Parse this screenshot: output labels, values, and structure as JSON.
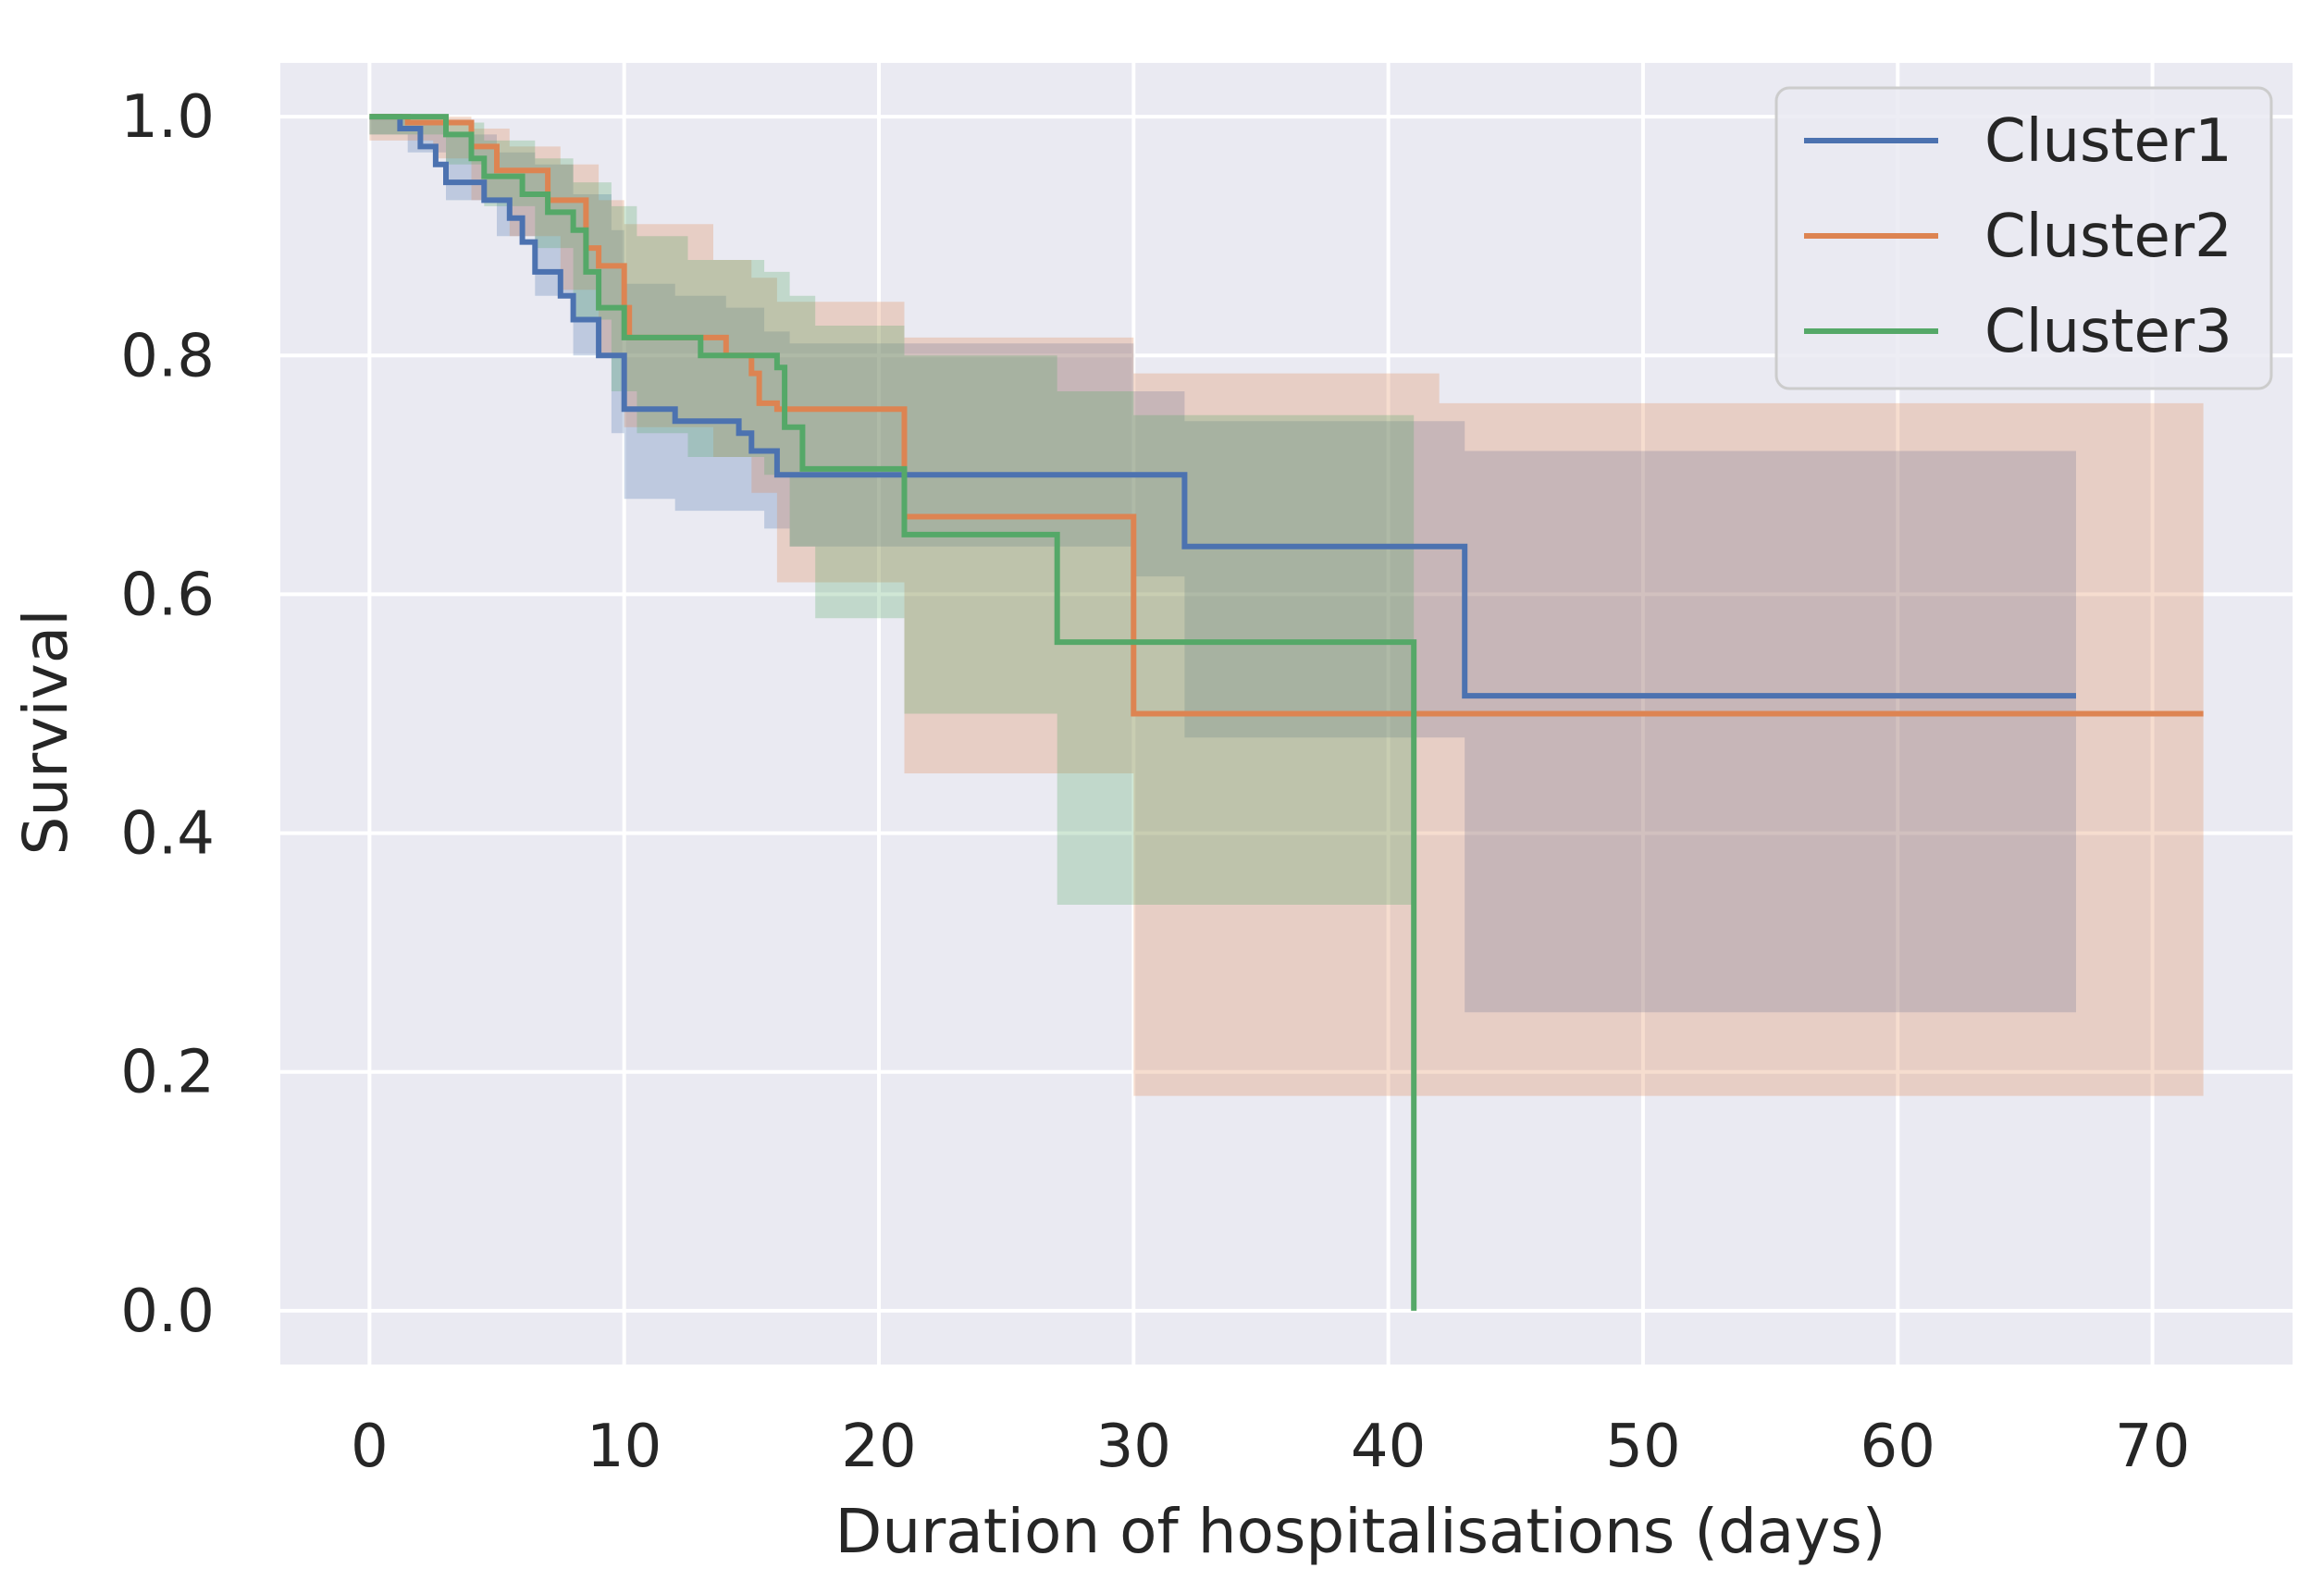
{
  "chart_data": {
    "type": "line",
    "subtype": "kaplan-meier-step",
    "title": "",
    "xlabel": "Duration of hospitalisations (days)",
    "ylabel": "Survival",
    "xlim": [
      -3.5,
      75.5
    ],
    "ylim": [
      -0.045,
      1.045
    ],
    "xticks": [
      0,
      10,
      20,
      30,
      40,
      50,
      60,
      70
    ],
    "yticks": [
      0.0,
      0.2,
      0.4,
      0.6,
      0.8,
      1.0
    ],
    "xtick_labels": [
      "0",
      "10",
      "20",
      "30",
      "40",
      "50",
      "60",
      "70"
    ],
    "ytick_labels": [
      "0.0",
      "0.2",
      "0.4",
      "0.6",
      "0.8",
      "1.0"
    ],
    "grid": true,
    "legend_position": "top-right",
    "series": [
      {
        "name": "Cluster1",
        "color": "#4c72b0",
        "steps": [
          [
            0,
            1.0
          ],
          [
            1.2,
            0.99
          ],
          [
            2.0,
            0.975
          ],
          [
            2.6,
            0.96
          ],
          [
            3.0,
            0.945
          ],
          [
            4.5,
            0.93
          ],
          [
            5.5,
            0.915
          ],
          [
            6.0,
            0.895
          ],
          [
            6.5,
            0.87
          ],
          [
            7.5,
            0.85
          ],
          [
            8.0,
            0.83
          ],
          [
            9.0,
            0.8
          ],
          [
            10.0,
            0.755
          ],
          [
            12.0,
            0.745
          ],
          [
            14.5,
            0.735
          ],
          [
            15.0,
            0.72
          ],
          [
            16.0,
            0.7
          ],
          [
            32.0,
            0.64
          ],
          [
            43.0,
            0.515
          ],
          [
            67.0,
            0.515
          ]
        ],
        "ci_steps": [
          [
            0,
            1.0,
            0.985
          ],
          [
            1.5,
            0.995,
            0.97
          ],
          [
            3.0,
            0.985,
            0.93
          ],
          [
            5.0,
            0.97,
            0.9
          ],
          [
            6.5,
            0.96,
            0.85
          ],
          [
            8.0,
            0.935,
            0.8
          ],
          [
            9.5,
            0.905,
            0.735
          ],
          [
            10.0,
            0.86,
            0.68
          ],
          [
            12.0,
            0.85,
            0.67
          ],
          [
            14.0,
            0.84,
            0.67
          ],
          [
            15.5,
            0.82,
            0.655
          ],
          [
            16.5,
            0.81,
            0.64
          ],
          [
            30.0,
            0.77,
            0.615
          ],
          [
            32.0,
            0.745,
            0.48
          ],
          [
            43.0,
            0.72,
            0.25
          ],
          [
            67.0,
            0.72,
            0.25
          ]
        ]
      },
      {
        "name": "Cluster2",
        "color": "#dd8452",
        "steps": [
          [
            0,
            1.0
          ],
          [
            1.5,
            0.995
          ],
          [
            4.0,
            0.975
          ],
          [
            5.0,
            0.955
          ],
          [
            7.0,
            0.93
          ],
          [
            8.5,
            0.89
          ],
          [
            9.0,
            0.875
          ],
          [
            10.0,
            0.84
          ],
          [
            10.2,
            0.815
          ],
          [
            14.0,
            0.8
          ],
          [
            15.0,
            0.785
          ],
          [
            15.3,
            0.76
          ],
          [
            16.0,
            0.755
          ],
          [
            21.0,
            0.665
          ],
          [
            30.0,
            0.5
          ],
          [
            72.0,
            0.5
          ]
        ],
        "ci_steps": [
          [
            0,
            1.0,
            0.98
          ],
          [
            2.5,
            1.0,
            0.965
          ],
          [
            4.0,
            0.99,
            0.93
          ],
          [
            5.5,
            0.975,
            0.9
          ],
          [
            7.5,
            0.96,
            0.855
          ],
          [
            9.0,
            0.93,
            0.8
          ],
          [
            10.0,
            0.91,
            0.74
          ],
          [
            13.5,
            0.88,
            0.715
          ],
          [
            15.0,
            0.865,
            0.685
          ],
          [
            16.0,
            0.845,
            0.61
          ],
          [
            21.0,
            0.815,
            0.45
          ],
          [
            30.0,
            0.785,
            0.18
          ],
          [
            42.0,
            0.76,
            0.18
          ],
          [
            72.0,
            0.76,
            0.18
          ]
        ]
      },
      {
        "name": "Cluster3",
        "color": "#55a868",
        "steps": [
          [
            0,
            1.0
          ],
          [
            3.0,
            0.985
          ],
          [
            4.0,
            0.965
          ],
          [
            4.5,
            0.95
          ],
          [
            6.0,
            0.935
          ],
          [
            7.0,
            0.92
          ],
          [
            8.0,
            0.905
          ],
          [
            8.5,
            0.87
          ],
          [
            9.0,
            0.84
          ],
          [
            10.0,
            0.815
          ],
          [
            13.0,
            0.8
          ],
          [
            16.0,
            0.79
          ],
          [
            16.3,
            0.74
          ],
          [
            17.0,
            0.705
          ],
          [
            21.0,
            0.65
          ],
          [
            27.0,
            0.56
          ],
          [
            41.0,
            0.0
          ]
        ],
        "ci_steps": [
          [
            0,
            1.0,
            0.985
          ],
          [
            3.0,
            0.995,
            0.96
          ],
          [
            4.5,
            0.98,
            0.925
          ],
          [
            6.5,
            0.965,
            0.89
          ],
          [
            8.0,
            0.945,
            0.83
          ],
          [
            9.5,
            0.925,
            0.77
          ],
          [
            10.5,
            0.9,
            0.735
          ],
          [
            12.5,
            0.88,
            0.715
          ],
          [
            15.5,
            0.87,
            0.7
          ],
          [
            16.5,
            0.85,
            0.64
          ],
          [
            17.5,
            0.825,
            0.58
          ],
          [
            21.0,
            0.8,
            0.5
          ],
          [
            27.0,
            0.77,
            0.34
          ],
          [
            30.0,
            0.75,
            0.34
          ],
          [
            41.0,
            0.75,
            0.34
          ]
        ]
      }
    ]
  }
}
